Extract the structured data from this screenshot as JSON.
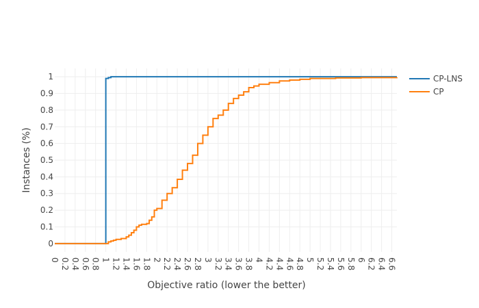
{
  "chart_data": {
    "type": "line",
    "line_shape": "step",
    "xlabel": "Objective ratio (lower the better)",
    "ylabel": "Instances (%)",
    "xlim": [
      0,
      6.7
    ],
    "ylim": [
      -0.05,
      1.05
    ],
    "grid": true,
    "legend_position": "top-right",
    "x_ticks": [
      "0",
      "0.2",
      "0.4",
      "0.6",
      "0.8",
      "1",
      "1.2",
      "1.4",
      "1.6",
      "1.8",
      "2",
      "2.2",
      "2.4",
      "2.6",
      "2.8",
      "3",
      "3.2",
      "3.4",
      "3.6",
      "3.8",
      "4",
      "4.2",
      "4.4",
      "4.6",
      "4.8",
      "5",
      "5.2",
      "5.4",
      "5.6",
      "5.8",
      "6",
      "6.2",
      "6.4",
      "6.6"
    ],
    "y_ticks": [
      "0",
      "0.1",
      "0.2",
      "0.3",
      "0.4",
      "0.5",
      "0.6",
      "0.7",
      "0.8",
      "0.9",
      "1"
    ],
    "series": [
      {
        "name": "CP-LNS",
        "color": "#1f77b4",
        "x": [
          0,
          1.0,
          1.0,
          1.02,
          1.05,
          1.1,
          6.7
        ],
        "y": [
          0,
          0,
          0.99,
          0.99,
          0.995,
          1.0,
          1.0
        ]
      },
      {
        "name": "CP",
        "color": "#ff7f0e",
        "x": [
          0,
          1.0,
          1.05,
          1.1,
          1.15,
          1.2,
          1.3,
          1.4,
          1.45,
          1.5,
          1.55,
          1.6,
          1.65,
          1.7,
          1.8,
          1.85,
          1.9,
          1.95,
          2.0,
          2.1,
          2.2,
          2.3,
          2.4,
          2.5,
          2.6,
          2.7,
          2.8,
          2.9,
          3.0,
          3.1,
          3.2,
          3.3,
          3.4,
          3.5,
          3.6,
          3.7,
          3.8,
          3.9,
          4.0,
          4.2,
          4.4,
          4.6,
          4.8,
          5.0,
          5.5,
          6.0,
          6.7
        ],
        "y": [
          0,
          0,
          0.01,
          0.015,
          0.02,
          0.025,
          0.03,
          0.04,
          0.05,
          0.065,
          0.08,
          0.1,
          0.11,
          0.115,
          0.12,
          0.14,
          0.16,
          0.2,
          0.21,
          0.26,
          0.3,
          0.335,
          0.385,
          0.44,
          0.48,
          0.53,
          0.6,
          0.65,
          0.7,
          0.75,
          0.77,
          0.8,
          0.84,
          0.87,
          0.89,
          0.91,
          0.935,
          0.945,
          0.955,
          0.965,
          0.975,
          0.98,
          0.985,
          0.99,
          0.993,
          0.995,
          0.997
        ]
      }
    ]
  }
}
